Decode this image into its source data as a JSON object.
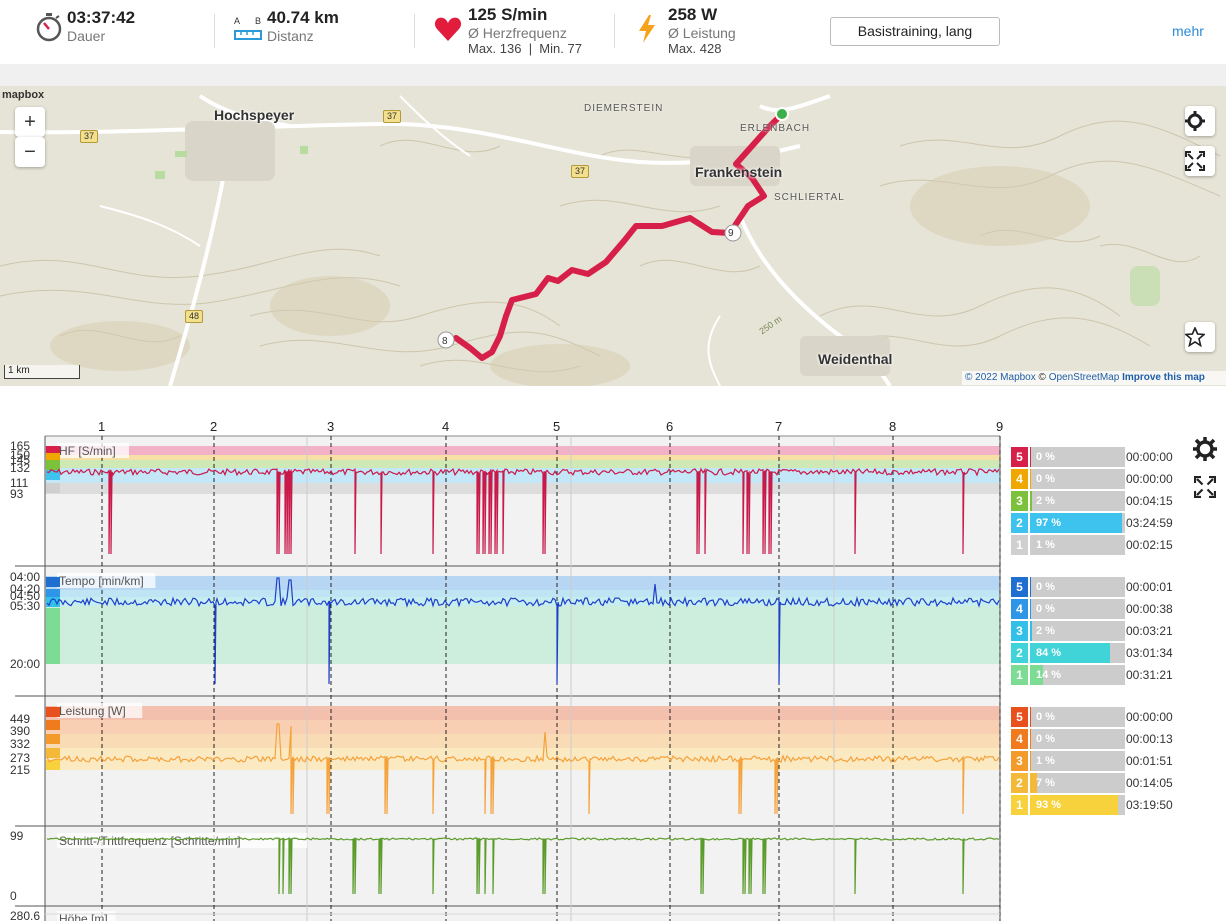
{
  "header": {
    "duration": {
      "value": "03:37:42",
      "label": "Dauer"
    },
    "distance": {
      "value": "40.74 km",
      "label": "Distanz",
      "a": "A",
      "b": "B"
    },
    "heart": {
      "value": "125 S/min",
      "label": "Ø Herzfrequenz",
      "minmax": "Max. 136  |  Min. 77"
    },
    "power": {
      "value": "258 W",
      "label": "Ø Leistung",
      "max": "Max. 428"
    },
    "training_button": "Basistraining, lang",
    "more": "mehr"
  },
  "map": {
    "logo": "mapbox",
    "places": [
      "Hochspeyer",
      "Frankenstein",
      "Weidenthal"
    ],
    "small_places": [
      "DIEMERSTEIN",
      "ERLENBACH",
      "SCHLIERTAL"
    ],
    "shields": [
      "37",
      "37",
      "37",
      "48"
    ],
    "markers": [
      "9",
      "8"
    ],
    "elevation_label": "250 m",
    "scale": "1 km",
    "attribution": {
      "c1": "© 2022 Mapbox",
      "c2": "©",
      "osm": "OpenStreetMap",
      "improve": "Improve this map"
    },
    "zoom_in": "+",
    "zoom_out": "−",
    "colors": {
      "route": "#d6204a",
      "terrain": "#e8e6da",
      "road": "#ffffff",
      "contour": "#c9c1a8"
    }
  },
  "laps": [
    "1",
    "2",
    "3",
    "4",
    "5",
    "6",
    "7",
    "8",
    "9"
  ],
  "panels": {
    "hf": {
      "title": "HF [S/min]",
      "ticks": [
        "165",
        "150",
        "145",
        "132",
        "111",
        "93"
      ],
      "zones": [
        {
          "n": "5",
          "pct": "0 %",
          "fill": 0.0,
          "time": "00:00:00",
          "color": "#d6204a"
        },
        {
          "n": "4",
          "pct": "0 %",
          "fill": 0.0,
          "time": "00:00:00",
          "color": "#f0a800"
        },
        {
          "n": "3",
          "pct": "2 %",
          "fill": 0.02,
          "time": "00:04:15",
          "color": "#7cc13c"
        },
        {
          "n": "2",
          "pct": "97 %",
          "fill": 0.97,
          "time": "03:24:59",
          "color": "#3ec2ee"
        },
        {
          "n": "1",
          "pct": "1 %",
          "fill": 0.01,
          "time": "00:02:15",
          "color": "#cfcfcf"
        }
      ]
    },
    "tempo": {
      "title": "Tempo [min/km]",
      "ticks": [
        "04:00",
        "04:20",
        "04:50",
        "05:30",
        "20:00"
      ],
      "zones": [
        {
          "n": "5",
          "pct": "0 %",
          "fill": 0.0,
          "time": "00:00:01",
          "color": "#1e6fd0"
        },
        {
          "n": "4",
          "pct": "0 %",
          "fill": 0.0,
          "time": "00:00:38",
          "color": "#2f95e6"
        },
        {
          "n": "3",
          "pct": "2 %",
          "fill": 0.02,
          "time": "00:03:21",
          "color": "#33c0e8"
        },
        {
          "n": "2",
          "pct": "84 %",
          "fill": 0.84,
          "time": "03:01:34",
          "color": "#40d3d8"
        },
        {
          "n": "1",
          "pct": "14 %",
          "fill": 0.14,
          "time": "00:31:21",
          "color": "#7ddc94"
        }
      ]
    },
    "power": {
      "title": "Leistung [W]",
      "ticks": [
        "449",
        "390",
        "332",
        "273",
        "215"
      ],
      "zones": [
        {
          "n": "5",
          "pct": "0 %",
          "fill": 0.0,
          "time": "00:00:00",
          "color": "#e8501e"
        },
        {
          "n": "4",
          "pct": "0 %",
          "fill": 0.0,
          "time": "00:00:13",
          "color": "#f07a1e"
        },
        {
          "n": "3",
          "pct": "1 %",
          "fill": 0.01,
          "time": "00:01:51",
          "color": "#f39a2a"
        },
        {
          "n": "2",
          "pct": "7 %",
          "fill": 0.07,
          "time": "00:14:05",
          "color": "#f5b93a"
        },
        {
          "n": "1",
          "pct": "93 %",
          "fill": 0.93,
          "time": "03:19:50",
          "color": "#f8d23c"
        }
      ]
    },
    "cadence": {
      "title": "Schritt-/Trittfrequenz [Schritte/min]",
      "ticks": [
        "99",
        "0"
      ]
    },
    "height": {
      "title": "Höhe [m]",
      "ticks": [
        "280.6"
      ]
    }
  }
}
